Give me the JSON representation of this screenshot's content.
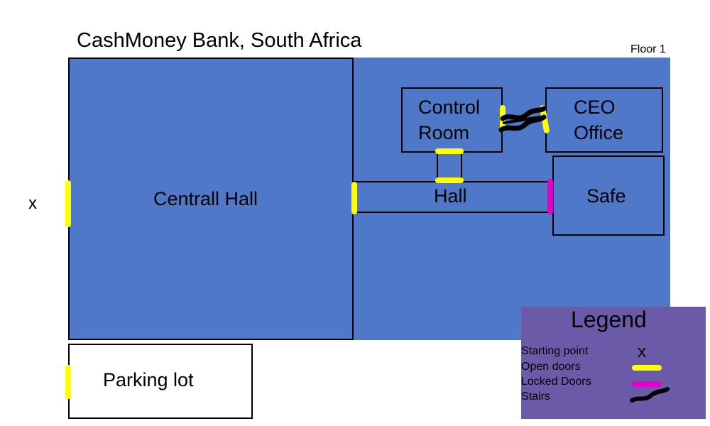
{
  "title": "CashMoney Bank, South Africa",
  "floor_label": "Floor 1",
  "rooms": {
    "central_hall": "Centrall Hall",
    "control_room_line1": "Control",
    "control_room_line2": "Room",
    "ceo_office_line1": "CEO",
    "ceo_office_line2": "Office",
    "hall": "Hall",
    "safe": "Safe",
    "parking_lot": "Parking lot"
  },
  "start_marker": "x",
  "legend": {
    "title": "Legend",
    "starting_point": "Starting point",
    "starting_point_symbol": "x",
    "open_doors": "Open doors",
    "locked_doors": "Locked Doors",
    "stairs": "Stairs"
  },
  "colors": {
    "building": "#4f79c8",
    "open_door": "#ffff00",
    "locked_door": "#e600c8",
    "stairs": "#000000",
    "legend_bg": "#6a5aa8"
  }
}
